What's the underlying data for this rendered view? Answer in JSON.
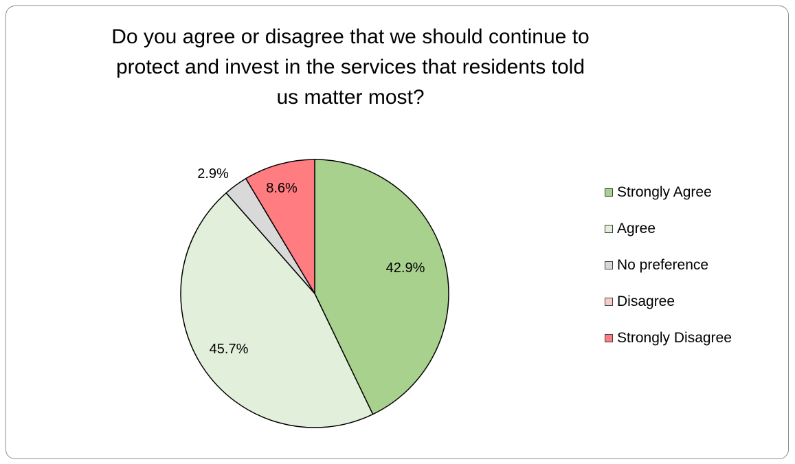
{
  "chart_data": {
    "type": "pie",
    "title": "Do you agree or disagree that we should continue to protect and invest in the services that residents told us matter most?",
    "categories": [
      "Strongly Agree",
      "Agree",
      "No preference",
      "Disagree",
      "Strongly Disagree"
    ],
    "values": [
      42.9,
      45.7,
      2.9,
      0.0,
      8.6
    ],
    "data_labels": [
      "42.9%",
      "45.7%",
      "2.9%",
      "",
      "8.6%"
    ],
    "colors": [
      "#a9d18e",
      "#e2efda",
      "#d9d9d9",
      "#f8cbcb",
      "#ff7c80"
    ],
    "legend_position": "right",
    "start_angle_deg": 0,
    "direction": "clockwise"
  }
}
